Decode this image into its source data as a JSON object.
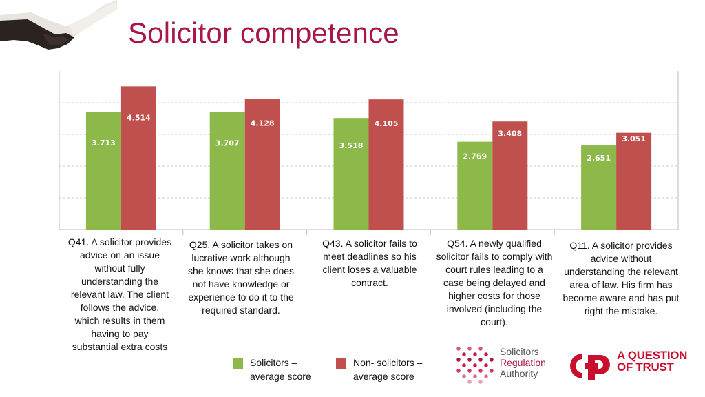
{
  "title": "Solicitor competence",
  "colors": {
    "solicitors": "#8db84a",
    "non_solicitors": "#c0504d",
    "title": "#a8164a",
    "grid": "#c8c8c8"
  },
  "chart_data": {
    "type": "bar",
    "categories": [
      "Q41. A solicitor provides advice on an issue without fully understanding the relevant law. The client follows the advice, which results in them having to pay substantial extra costs",
      "Q25. A solicitor takes on lucrative work although she knows that she does not have knowledge or experience to do it to the required standard.",
      "Q43. A solicitor fails to meet deadlines so his client loses a valuable contract.",
      "Q54. A newly qualified solicitor fails to comply with court rules leading to a case being delayed and higher costs for those involved (including the court).",
      "Q11. A solicitor provides advice without understanding the relevant area of law. His firm has become aware and has put right the mistake."
    ],
    "series": [
      {
        "name": "Solicitors – average score",
        "values": [
          3.713,
          3.707,
          3.518,
          2.769,
          2.651
        ]
      },
      {
        "name": "Non- solicitors – average score",
        "values": [
          4.514,
          4.128,
          4.105,
          3.408,
          3.051
        ]
      }
    ],
    "value_labels": [
      [
        "3.713",
        "3.707",
        "3.518",
        "2.769",
        "2.651"
      ],
      [
        "4.514",
        "4.128",
        "4.105",
        "3.408",
        "3.051"
      ]
    ],
    "ylim": [
      0,
      5
    ],
    "grid": true,
    "xlabel": "",
    "ylabel": ""
  },
  "legend": {
    "solicitors_line1": "Solicitors –",
    "solicitors_line2": "average score",
    "non_solicitors_line1": "Non- solicitors –",
    "non_solicitors_line2": "average score"
  },
  "logos": {
    "sra_line1": "Solicitors",
    "sra_line2": "Regulation",
    "sra_line3": "Authority",
    "aqt_line1": "A QUESTION",
    "aqt_line2": "OF TRUST"
  }
}
